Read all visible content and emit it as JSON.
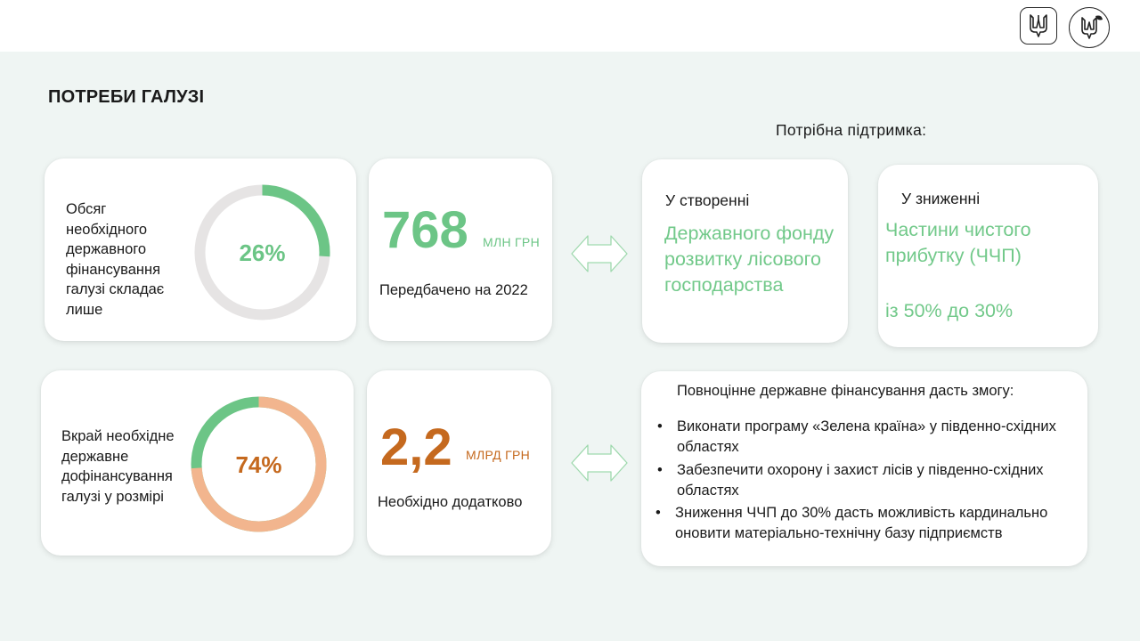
{
  "header": {
    "logo1_icon": "trident-emblem-icon",
    "logo2_icon": "trident-leaf-emblem-icon"
  },
  "title": "ПОТРЕБИ ГАЛУЗІ",
  "support_title": "Потрібна  підтримка:",
  "cards": {
    "funding_share": {
      "description": "Обсяг необхідного державного фінансування галузі складає лише",
      "percent_label": "26%",
      "percent_value": 26,
      "fill_color": "#6cc586",
      "track_color": "#e6e4e4",
      "label_color": "#6cc586"
    },
    "planned": {
      "value": "768",
      "unit": "МЛН ГРН",
      "subtitle": "Передбачено на 2022"
    },
    "additional_share": {
      "description": "Вкрай необхідне державне дофінансування галузі у розмірі",
      "percent_label": "74%",
      "percent_value": 74,
      "fill_color": "#f2b58e",
      "track_color": "#6cc586",
      "label_color": "#c5691e"
    },
    "required": {
      "value": "2,2",
      "unit": "МЛРД ГРН",
      "subtitle": "Необхідно додатково"
    },
    "creation": {
      "heading": "У створенні",
      "text": "Державного фонду розвитку лісового господарства"
    },
    "reduction": {
      "heading": "У зниженні",
      "text": "Частини чистого прибутку (ЧЧП)",
      "change": "із 50% до 30%"
    },
    "benefits": {
      "heading": "Повноцінне державне фінансування дасть змогу:",
      "bullet_glyph": "•",
      "items": [
        "Виконати програму «Зелена країна» у південно-східних областях",
        "Забезпечити охорону і захист лісів у південно-східних областях",
        "Зниження ЧЧП до 30% дасть можливість кардинально оновити матеріально-технічну базу підприємств"
      ]
    }
  },
  "colors": {
    "accent_green": "#72c98a",
    "accent_orange": "#c5691e",
    "background": "#eff5f3"
  }
}
